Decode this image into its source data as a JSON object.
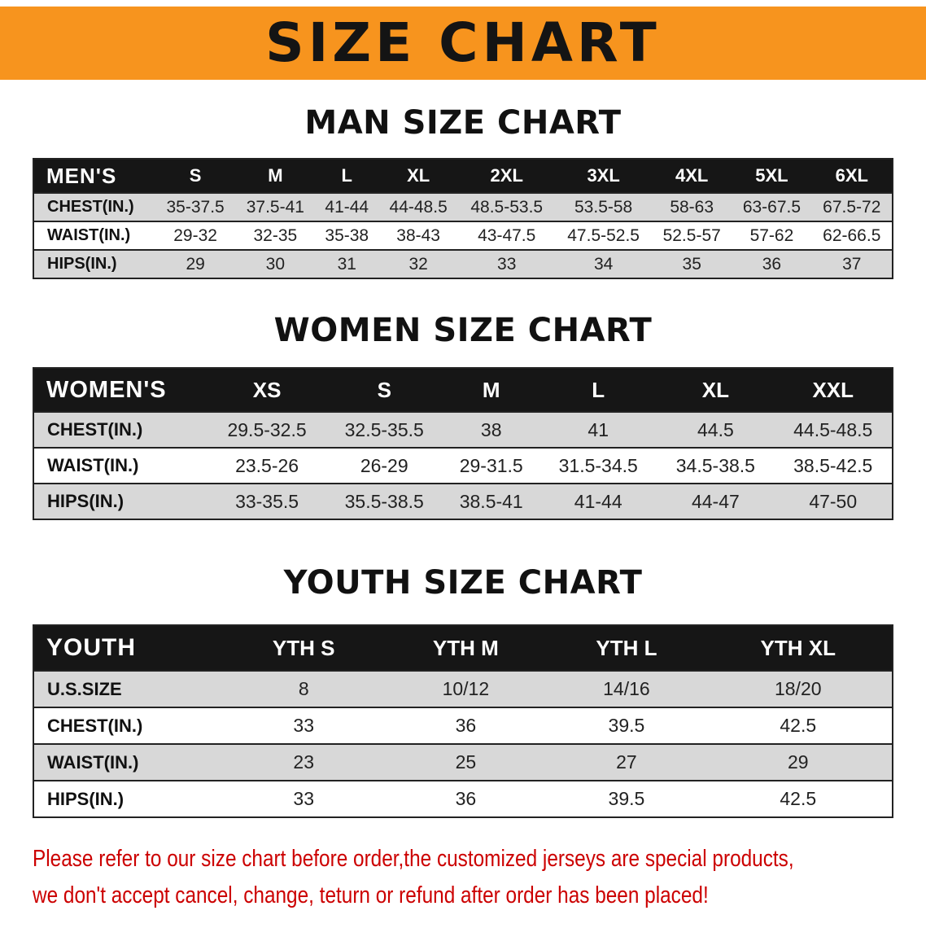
{
  "banner": {
    "title": "SIZE CHART",
    "bg_color": "#F7941E"
  },
  "sections": [
    {
      "id": "men",
      "heading": "MAN SIZE CHART",
      "table": {
        "title": "MEN'S",
        "sizes": [
          "S",
          "M",
          "L",
          "XL",
          "2XL",
          "3XL",
          "4XL",
          "5XL",
          "6XL"
        ],
        "rows": [
          {
            "label": "CHEST(IN.)",
            "values": [
              "35-37.5",
              "37.5-41",
              "41-44",
              "44-48.5",
              "48.5-53.5",
              "53.5-58",
              "58-63",
              "63-67.5",
              "67.5-72"
            ]
          },
          {
            "label": "WAIST(IN.)",
            "values": [
              "29-32",
              "32-35",
              "35-38",
              "38-43",
              "43-47.5",
              "47.5-52.5",
              "52.5-57",
              "57-62",
              "62-66.5"
            ]
          },
          {
            "label": "HIPS(IN.)",
            "values": [
              "29",
              "30",
              "31",
              "32",
              "33",
              "34",
              "35",
              "36",
              "37"
            ]
          }
        ]
      }
    },
    {
      "id": "women",
      "heading": "WOMEN SIZE CHART",
      "table": {
        "title": "WOMEN'S",
        "sizes": [
          "XS",
          "S",
          "M",
          "L",
          "XL",
          "XXL"
        ],
        "rows": [
          {
            "label": "CHEST(IN.)",
            "values": [
              "29.5-32.5",
              "32.5-35.5",
              "38",
              "41",
              "44.5",
              "44.5-48.5"
            ]
          },
          {
            "label": "WAIST(IN.)",
            "values": [
              "23.5-26",
              "26-29",
              "29-31.5",
              "31.5-34.5",
              "34.5-38.5",
              "38.5-42.5"
            ]
          },
          {
            "label": "HIPS(IN.)",
            "values": [
              "33-35.5",
              "35.5-38.5",
              "38.5-41",
              "41-44",
              "44-47",
              "47-50"
            ]
          }
        ]
      }
    },
    {
      "id": "youth",
      "heading": "YOUTH SIZE CHART",
      "table": {
        "title": "YOUTH",
        "sizes": [
          "YTH S",
          "YTH M",
          "YTH L",
          "YTH XL"
        ],
        "rows": [
          {
            "label": "U.S.SIZE",
            "values": [
              "8",
              "10/12",
              "14/16",
              "18/20"
            ]
          },
          {
            "label": "CHEST(IN.)",
            "values": [
              "33",
              "36",
              "39.5",
              "42.5"
            ]
          },
          {
            "label": "WAIST(IN.)",
            "values": [
              "23",
              "25",
              "27",
              "29"
            ]
          },
          {
            "label": "HIPS(IN.)",
            "values": [
              "33",
              "36",
              "39.5",
              "42.5"
            ]
          }
        ]
      }
    }
  ],
  "disclaimer": {
    "line1": "Please refer to our size chart before order,the customized jerseys are special products,",
    "line2": "we don't accept cancel, change, teturn or refund after order has been placed!",
    "color": "#CC0000"
  }
}
